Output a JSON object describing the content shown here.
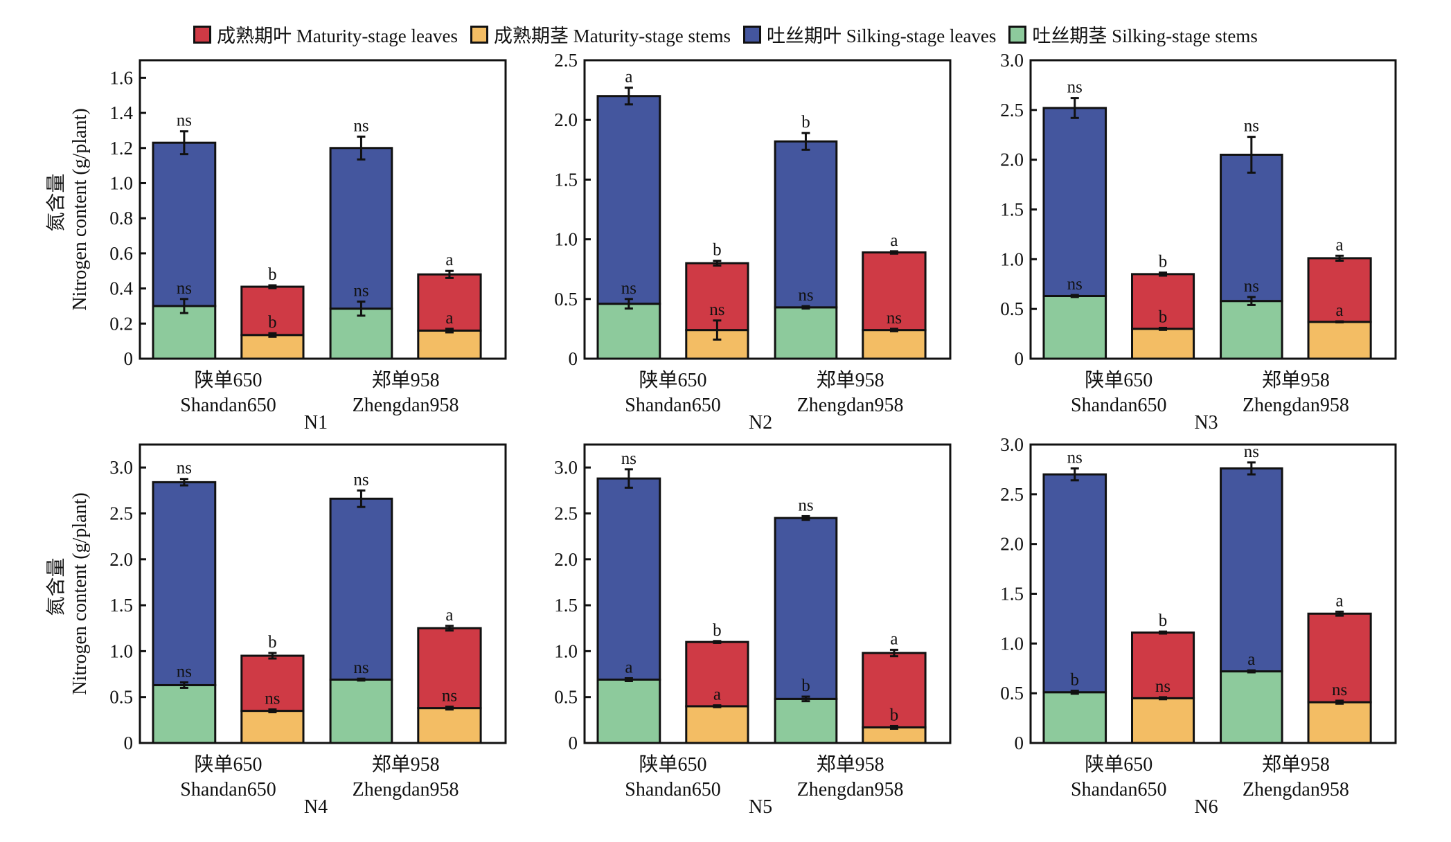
{
  "legend": [
    {
      "key": "mat_leaves",
      "label": "成熟期叶 Maturity-stage leaves",
      "color": "#CF3A45"
    },
    {
      "key": "mat_stems",
      "label": "成熟期茎 Maturity-stage stems",
      "color": "#F3BD64"
    },
    {
      "key": "silk_leaves",
      "label": "吐丝期叶 Silking-stage leaves",
      "color": "#44569E"
    },
    {
      "key": "silk_stems",
      "label": "吐丝期茎 Silking-stage stems",
      "color": "#8DCA9C"
    }
  ],
  "chart_data": [
    {
      "type": "bar",
      "stacked": true,
      "title": "N1",
      "ylabel_cn": "氮含量",
      "ylabel": "Nitrogen content (g/plant)",
      "ylim": [
        0,
        1.7
      ],
      "yticks": [
        0,
        0.2,
        0.4,
        0.6,
        0.8,
        1.0,
        1.2,
        1.4,
        1.6
      ],
      "ytick_labels": [
        "0",
        "0.2",
        "0.4",
        "0.6",
        "0.8",
        "1.0",
        "1.2",
        "1.4",
        "1.6"
      ],
      "groups": [
        {
          "cn": "陕单650",
          "en": "Shandan650",
          "silking": {
            "stems": 0.3,
            "stems_err": 0.04,
            "stems_sig": "ns",
            "total": 1.23,
            "total_err": 0.065,
            "total_sig": "ns"
          },
          "maturity": {
            "stems": 0.135,
            "stems_err": 0.01,
            "stems_sig": "b",
            "total": 0.41,
            "total_err": 0.008,
            "total_sig": "b"
          }
        },
        {
          "cn": "郑单958",
          "en": "Zhengdan958",
          "silking": {
            "stems": 0.285,
            "stems_err": 0.04,
            "stems_sig": "ns",
            "total": 1.2,
            "total_err": 0.065,
            "total_sig": "ns"
          },
          "maturity": {
            "stems": 0.16,
            "stems_err": 0.01,
            "stems_sig": "a",
            "total": 0.48,
            "total_err": 0.02,
            "total_sig": "a"
          }
        }
      ]
    },
    {
      "type": "bar",
      "stacked": true,
      "title": "N2",
      "ylim": [
        0,
        2.5
      ],
      "yticks": [
        0,
        0.5,
        1.0,
        1.5,
        2.0,
        2.5
      ],
      "ytick_labels": [
        "0",
        "0.5",
        "1.0",
        "1.5",
        "2.0",
        "2.5"
      ],
      "groups": [
        {
          "cn": "陕单650",
          "en": "Shandan650",
          "silking": {
            "stems": 0.46,
            "stems_err": 0.04,
            "stems_sig": "ns",
            "total": 2.2,
            "total_err": 0.07,
            "total_sig": "a"
          },
          "maturity": {
            "stems": 0.24,
            "stems_err": 0.08,
            "stems_sig": "ns",
            "total": 0.8,
            "total_err": 0.02,
            "total_sig": "b"
          }
        },
        {
          "cn": "郑单958",
          "en": "Zhengdan958",
          "silking": {
            "stems": 0.43,
            "stems_err": 0.01,
            "stems_sig": "ns",
            "total": 1.82,
            "total_err": 0.07,
            "total_sig": "b"
          },
          "maturity": {
            "stems": 0.24,
            "stems_err": 0.01,
            "stems_sig": "ns",
            "total": 0.89,
            "total_err": 0.01,
            "total_sig": "a"
          }
        }
      ]
    },
    {
      "type": "bar",
      "stacked": true,
      "title": "N3",
      "ylim": [
        0,
        3.0
      ],
      "yticks": [
        0,
        0.5,
        1.0,
        1.5,
        2.0,
        2.5,
        3.0
      ],
      "ytick_labels": [
        "0",
        "0.5",
        "1.0",
        "1.5",
        "2.0",
        "2.5",
        "3.0"
      ],
      "groups": [
        {
          "cn": "陕单650",
          "en": "Shandan650",
          "silking": {
            "stems": 0.63,
            "stems_err": 0.01,
            "stems_sig": "ns",
            "total": 2.52,
            "total_err": 0.1,
            "total_sig": "ns"
          },
          "maturity": {
            "stems": 0.3,
            "stems_err": 0.01,
            "stems_sig": "b",
            "total": 0.85,
            "total_err": 0.015,
            "total_sig": "b"
          }
        },
        {
          "cn": "郑单958",
          "en": "Zhengdan958",
          "silking": {
            "stems": 0.58,
            "stems_err": 0.04,
            "stems_sig": "ns",
            "total": 2.05,
            "total_err": 0.18,
            "total_sig": "ns"
          },
          "maturity": {
            "stems": 0.37,
            "stems_err": 0.005,
            "stems_sig": "a",
            "total": 1.01,
            "total_err": 0.025,
            "total_sig": "a"
          }
        }
      ]
    },
    {
      "type": "bar",
      "stacked": true,
      "title": "N4",
      "ylabel_cn": "氮含量",
      "ylabel": "Nitrogen content (g/plant)",
      "ylim": [
        0,
        3.25
      ],
      "yticks": [
        0,
        0.5,
        1.0,
        1.5,
        2.0,
        2.5,
        3.0
      ],
      "ytick_labels": [
        "0",
        "0.5",
        "1.0",
        "1.5",
        "2.0",
        "2.5",
        "3.0"
      ],
      "groups": [
        {
          "cn": "陕单650",
          "en": "Shandan650",
          "silking": {
            "stems": 0.63,
            "stems_err": 0.03,
            "stems_sig": "ns",
            "total": 2.84,
            "total_err": 0.035,
            "total_sig": "ns"
          },
          "maturity": {
            "stems": 0.35,
            "stems_err": 0.015,
            "stems_sig": "ns",
            "total": 0.95,
            "total_err": 0.03,
            "total_sig": "b"
          }
        },
        {
          "cn": "郑单958",
          "en": "Zhengdan958",
          "silking": {
            "stems": 0.69,
            "stems_err": 0.01,
            "stems_sig": "ns",
            "total": 2.66,
            "total_err": 0.09,
            "total_sig": "ns"
          },
          "maturity": {
            "stems": 0.38,
            "stems_err": 0.015,
            "stems_sig": "ns",
            "total": 1.25,
            "total_err": 0.025,
            "total_sig": "a"
          }
        }
      ]
    },
    {
      "type": "bar",
      "stacked": true,
      "title": "N5",
      "ylim": [
        0,
        3.25
      ],
      "yticks": [
        0,
        0.5,
        1.0,
        1.5,
        2.0,
        2.5,
        3.0
      ],
      "ytick_labels": [
        "0",
        "0.5",
        "1.0",
        "1.5",
        "2.0",
        "2.5",
        "3.0"
      ],
      "groups": [
        {
          "cn": "陕单650",
          "en": "Shandan650",
          "silking": {
            "stems": 0.69,
            "stems_err": 0.015,
            "stems_sig": "a",
            "total": 2.88,
            "total_err": 0.1,
            "total_sig": "ns"
          },
          "maturity": {
            "stems": 0.4,
            "stems_err": 0.01,
            "stems_sig": "a",
            "total": 1.1,
            "total_err": 0.01,
            "total_sig": "b"
          }
        },
        {
          "cn": "郑单958",
          "en": "Zhengdan958",
          "silking": {
            "stems": 0.48,
            "stems_err": 0.025,
            "stems_sig": "b",
            "total": 2.45,
            "total_err": 0.02,
            "total_sig": "ns"
          },
          "maturity": {
            "stems": 0.17,
            "stems_err": 0.015,
            "stems_sig": "b",
            "total": 0.98,
            "total_err": 0.035,
            "total_sig": "a"
          }
        }
      ]
    },
    {
      "type": "bar",
      "stacked": true,
      "title": "N6",
      "ylim": [
        0,
        3.0
      ],
      "yticks": [
        0,
        0.5,
        1.0,
        1.5,
        2.0,
        2.5,
        3.0
      ],
      "ytick_labels": [
        "0",
        "0.5",
        "1.0",
        "1.5",
        "2.0",
        "2.5",
        "3.0"
      ],
      "groups": [
        {
          "cn": "陕单650",
          "en": "Shandan650",
          "silking": {
            "stems": 0.51,
            "stems_err": 0.015,
            "stems_sig": "b",
            "total": 2.7,
            "total_err": 0.06,
            "total_sig": "ns"
          },
          "maturity": {
            "stems": 0.45,
            "stems_err": 0.01,
            "stems_sig": "ns",
            "total": 1.11,
            "total_err": 0.01,
            "total_sig": "b"
          }
        },
        {
          "cn": "郑单958",
          "en": "Zhengdan958",
          "silking": {
            "stems": 0.72,
            "stems_err": 0.01,
            "stems_sig": "a",
            "total": 2.76,
            "total_err": 0.06,
            "total_sig": "ns"
          },
          "maturity": {
            "stems": 0.41,
            "stems_err": 0.015,
            "stems_sig": "ns",
            "total": 1.3,
            "total_err": 0.02,
            "total_sig": "a"
          }
        }
      ]
    }
  ]
}
